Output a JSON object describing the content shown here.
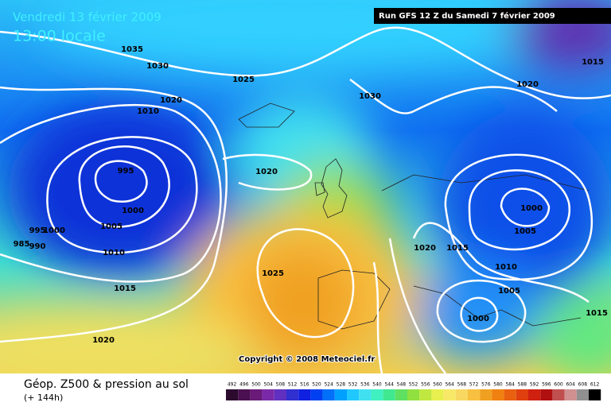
{
  "header": {
    "date": "Vendredi 13 février 2009",
    "time": "13:00 locale",
    "run": "Run GFS 12 Z du Samedi 7 février 2009"
  },
  "footer": {
    "title": "Géop. Z500 & pression au sol",
    "subtitle": "(+ 144h)",
    "copyright": "Copyright © 2008 Meteociel.fr"
  },
  "isobar_labels": [
    "1035",
    "1030",
    "1025",
    "1020",
    "1010",
    "1030",
    "1020",
    "1015",
    "1020",
    "995",
    "1000",
    "1005",
    "995",
    "1000",
    "985",
    "990",
    "1010",
    "1015",
    "1025",
    "1020",
    "1015",
    "1000",
    "1005",
    "1010",
    "1005",
    "1000",
    "1015",
    "1020"
  ],
  "scale": {
    "values": [
      492,
      496,
      500,
      504,
      508,
      512,
      516,
      520,
      524,
      528,
      532,
      536,
      540,
      544,
      548,
      552,
      556,
      560,
      564,
      568,
      572,
      576,
      580,
      584,
      588,
      592,
      596,
      600,
      604,
      608,
      612
    ],
    "colors": [
      "#2b0a2e",
      "#4a1050",
      "#6a1a78",
      "#7a2aa8",
      "#6030c0",
      "#3030d0",
      "#1020e0",
      "#0040f0",
      "#0070f8",
      "#00a0ff",
      "#20c8ff",
      "#40e0f0",
      "#40f0c0",
      "#40e890",
      "#60e060",
      "#90e040",
      "#c0e840",
      "#e8f050",
      "#f8e868",
      "#f8d860",
      "#f8c040",
      "#f0a020",
      "#f08010",
      "#e86010",
      "#e04010",
      "#d02010",
      "#b01010",
      "#c05050",
      "#d09090",
      "#909090",
      "#000000"
    ]
  }
}
